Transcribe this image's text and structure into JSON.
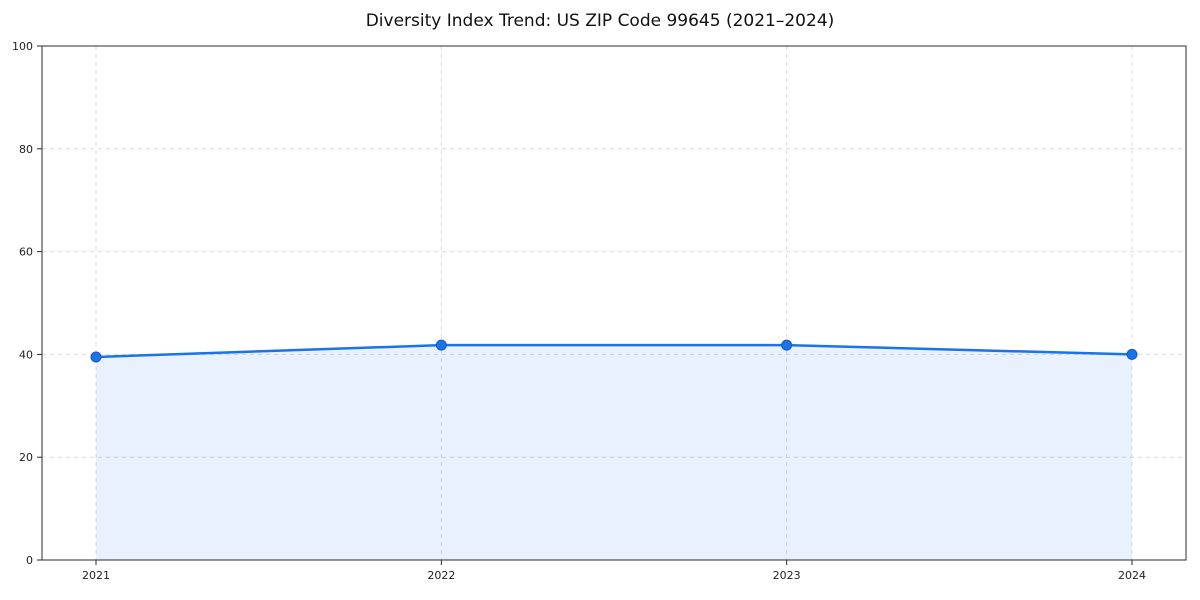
{
  "chart_data": {
    "type": "line",
    "title": "Diversity Index Trend: US ZIP Code 99645 (2021–2024)",
    "categories": [
      "2021",
      "2022",
      "2023",
      "2024"
    ],
    "series": [
      {
        "name": "Diversity Index",
        "values": [
          39.5,
          41.8,
          41.8,
          40.0
        ]
      }
    ],
    "xlabel": "",
    "ylabel": "",
    "ylim": [
      0,
      100
    ],
    "yticks": [
      0,
      20,
      40,
      60,
      80,
      100
    ],
    "grid": true,
    "grid_style": "dashed",
    "legend": "none",
    "colors": {
      "line": "#1a73e8",
      "marker": "#1a73e8",
      "marker_edge": "#1159c1",
      "fill": "#1a73e8",
      "fill_opacity": 0.1,
      "gridline": "#dcdcdc",
      "spine": "#2b2b2b",
      "background": "#ffffff"
    }
  }
}
